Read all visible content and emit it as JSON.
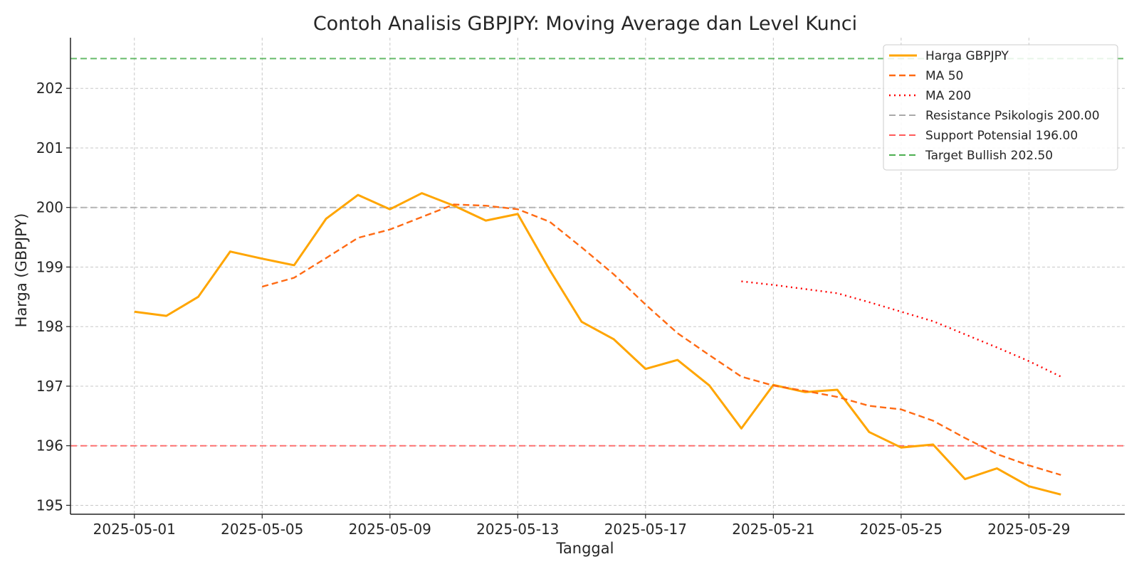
{
  "chart_data": {
    "type": "line",
    "title": "Contoh Analisis GBPJPY: Moving Average dan Level Kunci",
    "xlabel": "Tanggal",
    "ylabel": "Harga (GBPJPY)",
    "x_start": "2025-05-01",
    "x_range": [
      "2025-05-01",
      "2025-05-30"
    ],
    "xlim": [
      "2025-04-29",
      "2025-06-01"
    ],
    "ylim": [
      194.85,
      202.85
    ],
    "x_ticks": [
      "2025-05-01",
      "2025-05-05",
      "2025-05-09",
      "2025-05-13",
      "2025-05-17",
      "2025-05-21",
      "2025-05-25",
      "2025-05-29"
    ],
    "y_ticks": [
      195,
      196,
      197,
      198,
      199,
      200,
      201,
      202
    ],
    "grid": true,
    "legend_position": "top-right",
    "series": [
      {
        "name": "Harga GBPJPY",
        "color": "#FFA500",
        "style": "solid",
        "x": [
          "2025-05-01",
          "2025-05-02",
          "2025-05-03",
          "2025-05-04",
          "2025-05-05",
          "2025-05-06",
          "2025-05-07",
          "2025-05-08",
          "2025-05-09",
          "2025-05-10",
          "2025-05-11",
          "2025-05-12",
          "2025-05-13",
          "2025-05-14",
          "2025-05-15",
          "2025-05-16",
          "2025-05-17",
          "2025-05-18",
          "2025-05-19",
          "2025-05-20",
          "2025-05-21",
          "2025-05-22",
          "2025-05-23",
          "2025-05-24",
          "2025-05-25",
          "2025-05-26",
          "2025-05-27",
          "2025-05-28",
          "2025-05-29",
          "2025-05-30"
        ],
        "values": [
          198.25,
          198.18,
          198.5,
          199.26,
          199.14,
          199.03,
          199.81,
          200.21,
          199.97,
          200.24,
          200.03,
          199.78,
          199.89,
          198.95,
          198.08,
          197.79,
          197.29,
          197.44,
          197.01,
          196.29,
          197.02,
          196.9,
          196.94,
          196.23,
          195.97,
          196.02,
          195.44,
          195.62,
          195.32,
          195.18
        ]
      },
      {
        "name": "MA 50",
        "color": "#FF6A13",
        "style": "dashed",
        "x": [
          "2025-05-05",
          "2025-05-06",
          "2025-05-07",
          "2025-05-08",
          "2025-05-09",
          "2025-05-10",
          "2025-05-11",
          "2025-05-12",
          "2025-05-13",
          "2025-05-14",
          "2025-05-15",
          "2025-05-16",
          "2025-05-17",
          "2025-05-18",
          "2025-05-19",
          "2025-05-20",
          "2025-05-21",
          "2025-05-22",
          "2025-05-23",
          "2025-05-24",
          "2025-05-25",
          "2025-05-26",
          "2025-05-27",
          "2025-05-28",
          "2025-05-29",
          "2025-05-30"
        ],
        "values": [
          198.67,
          198.82,
          199.15,
          199.49,
          199.63,
          199.84,
          200.05,
          200.03,
          199.97,
          199.76,
          199.33,
          198.88,
          198.37,
          197.89,
          197.52,
          197.16,
          197.01,
          196.92,
          196.82,
          196.67,
          196.61,
          196.42,
          196.13,
          195.86,
          195.67,
          195.51
        ]
      },
      {
        "name": "MA 200",
        "color": "#FF0000",
        "style": "dotted",
        "x": [
          "2025-05-20",
          "2025-05-21",
          "2025-05-22",
          "2025-05-23",
          "2025-05-24",
          "2025-05-25",
          "2025-05-26",
          "2025-05-27",
          "2025-05-28",
          "2025-05-29",
          "2025-05-30"
        ],
        "values": [
          198.76,
          198.7,
          198.63,
          198.56,
          198.41,
          198.25,
          198.09,
          197.87,
          197.65,
          197.42,
          197.16
        ]
      }
    ],
    "hlines": [
      {
        "name": "Resistance Psikologis 200.00",
        "value": 200.0,
        "color": "#A9A9A9",
        "style": "dashed"
      },
      {
        "name": "Support Potensial 196.00",
        "value": 196.0,
        "color": "#FF5A5A",
        "style": "dashed"
      },
      {
        "name": "Target Bullish 202.50",
        "value": 202.5,
        "color": "#4CAF50",
        "style": "dashed"
      }
    ]
  }
}
